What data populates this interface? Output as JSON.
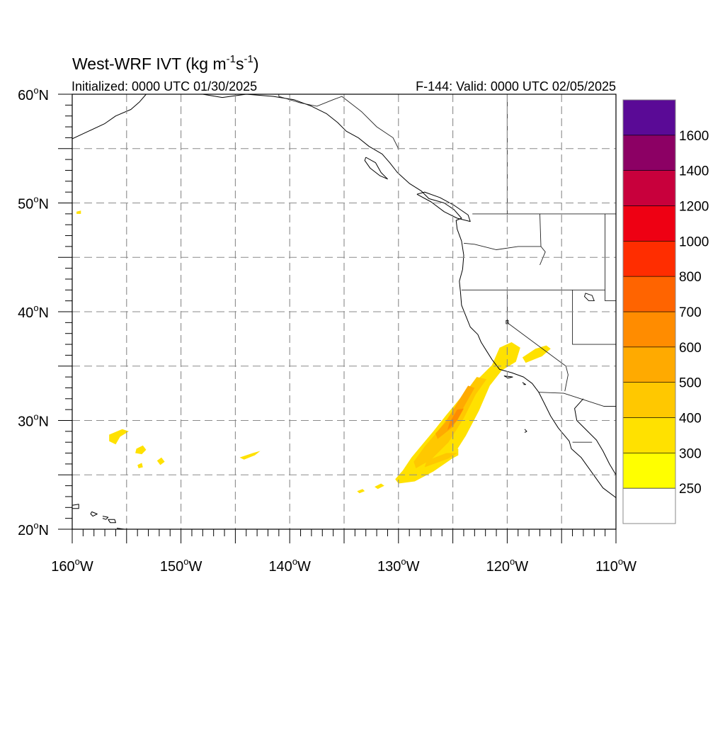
{
  "title": {
    "prefix": "West-WRF IVT (kg m",
    "sup1": "-1",
    "mid": "s",
    "sup2": "-1",
    "suffix": ")"
  },
  "initialized": "Initialized: 0000 UTC 01/30/2025",
  "valid": "F-144: Valid: 0000 UTC 02/05/2025",
  "map": {
    "lon_range": [
      -160,
      -110
    ],
    "lat_range": [
      20,
      60
    ],
    "lon_ticks": [
      {
        "value": -160,
        "num": "160",
        "hem": "W"
      },
      {
        "value": -150,
        "num": "150",
        "hem": "W"
      },
      {
        "value": -140,
        "num": "140",
        "hem": "W"
      },
      {
        "value": -130,
        "num": "130",
        "hem": "W"
      },
      {
        "value": -120,
        "num": "120",
        "hem": "W"
      },
      {
        "value": -110,
        "num": "110",
        "hem": "W"
      }
    ],
    "lat_ticks": [
      {
        "value": 20,
        "num": "20",
        "hem": "N"
      },
      {
        "value": 30,
        "num": "30",
        "hem": "N"
      },
      {
        "value": 40,
        "num": "40",
        "hem": "N"
      },
      {
        "value": 50,
        "num": "50",
        "hem": "N"
      },
      {
        "value": 60,
        "num": "60",
        "hem": "N"
      }
    ],
    "gridlines": {
      "lon": [
        -155,
        -150,
        -145,
        -140,
        -135,
        -130,
        -125,
        -120,
        -115
      ],
      "lat": [
        25,
        30,
        35,
        40,
        45,
        50,
        55
      ]
    },
    "grid_style": "dashed",
    "degree_symbol": "o"
  },
  "colorbar": {
    "levels": [
      250,
      300,
      400,
      500,
      600,
      700,
      800,
      1000,
      1200,
      1400,
      1600
    ],
    "colors": [
      "#ffffff",
      "#ffff00",
      "#ffe100",
      "#ffc800",
      "#ffaa00",
      "#ff8c00",
      "#ff6400",
      "#ff2d00",
      "#ee0013",
      "#c8003c",
      "#8c0064",
      "#5a0a96"
    ],
    "labels": [
      "250",
      "300",
      "400",
      "500",
      "600",
      "700",
      "800",
      "1000",
      "1200",
      "1400",
      "1600"
    ]
  },
  "ivt_regions": [
    {
      "level": 300,
      "pts": [
        [
          -130,
          24.2
        ],
        [
          -128.5,
          24.4
        ],
        [
          -126.8,
          25.3
        ],
        [
          -125.2,
          26.4
        ],
        [
          -123.8,
          28.6
        ],
        [
          -122.6,
          30.9
        ],
        [
          -121.6,
          33.2
        ],
        [
          -120.5,
          34.6
        ],
        [
          -119.2,
          35.4
        ],
        [
          -118.8,
          36.7
        ],
        [
          -119.6,
          37.2
        ],
        [
          -120.7,
          36.7
        ],
        [
          -121.4,
          35.1
        ],
        [
          -122.7,
          33.8
        ],
        [
          -124.2,
          32.2
        ],
        [
          -125.6,
          30.5
        ],
        [
          -126.8,
          29.0
        ],
        [
          -127.8,
          27.8
        ],
        [
          -128.8,
          26.6
        ],
        [
          -129.6,
          25.4
        ],
        [
          -130.3,
          24.6
        ]
      ]
    },
    {
      "level": 300,
      "pts": [
        [
          -128.2,
          25.1
        ],
        [
          -125.6,
          26.2
        ],
        [
          -124.5,
          26.8
        ],
        [
          -124.5,
          27.4
        ],
        [
          -126.2,
          27.0
        ],
        [
          -127.8,
          26.1
        ]
      ]
    },
    {
      "level": 300,
      "pts": [
        [
          -118.3,
          35.3
        ],
        [
          -116.8,
          35.9
        ],
        [
          -116.0,
          36.6
        ],
        [
          -116.4,
          36.9
        ],
        [
          -117.4,
          36.6
        ],
        [
          -118.6,
          35.8
        ]
      ]
    },
    {
      "level": 400,
      "pts": [
        [
          -128.4,
          25.6
        ],
        [
          -127.0,
          26.4
        ],
        [
          -125.4,
          28.0
        ],
        [
          -124.0,
          30.2
        ],
        [
          -122.9,
          32.4
        ],
        [
          -121.9,
          33.8
        ],
        [
          -122.8,
          34.0
        ],
        [
          -123.9,
          32.5
        ],
        [
          -125.2,
          30.6
        ],
        [
          -126.4,
          29.0
        ],
        [
          -127.6,
          27.6
        ],
        [
          -128.6,
          26.2
        ]
      ]
    },
    {
      "level": 400,
      "pts": [
        [
          -127.6,
          25.7
        ],
        [
          -125.4,
          26.5
        ],
        [
          -124.6,
          27.0
        ],
        [
          -125.6,
          27.0
        ],
        [
          -127.4,
          26.3
        ]
      ]
    },
    {
      "level": 500,
      "pts": [
        [
          -126.4,
          28.3
        ],
        [
          -125.0,
          29.4
        ],
        [
          -123.9,
          31.4
        ],
        [
          -123.0,
          33.0
        ],
        [
          -123.6,
          33.2
        ],
        [
          -124.6,
          31.6
        ],
        [
          -125.7,
          29.8
        ],
        [
          -126.6,
          28.8
        ]
      ]
    },
    {
      "level": 600,
      "pts": [
        [
          -125.5,
          29.1
        ],
        [
          -124.6,
          30.0
        ],
        [
          -124.0,
          31.1
        ],
        [
          -124.6,
          31.0
        ],
        [
          -125.3,
          29.8
        ]
      ]
    },
    {
      "level": 300,
      "pts": [
        [
          -156.6,
          28.7
        ],
        [
          -155.4,
          29.2
        ],
        [
          -154.8,
          29.0
        ],
        [
          -155.6,
          28.5
        ],
        [
          -156.0,
          27.8
        ],
        [
          -156.6,
          28.1
        ]
      ]
    },
    {
      "level": 300,
      "pts": [
        [
          -154.1,
          27.4
        ],
        [
          -153.5,
          27.7
        ],
        [
          -153.2,
          27.3
        ],
        [
          -153.6,
          26.9
        ],
        [
          -154.2,
          27.0
        ]
      ]
    },
    {
      "level": 300,
      "pts": [
        [
          -152.2,
          26.3
        ],
        [
          -151.8,
          26.6
        ],
        [
          -151.5,
          26.2
        ],
        [
          -151.9,
          25.9
        ]
      ]
    },
    {
      "level": 300,
      "pts": [
        [
          -154.0,
          25.9
        ],
        [
          -153.6,
          26.1
        ],
        [
          -153.5,
          25.7
        ],
        [
          -153.9,
          25.6
        ]
      ]
    },
    {
      "level": 300,
      "pts": [
        [
          -144.6,
          26.6
        ],
        [
          -143.4,
          27.0
        ],
        [
          -142.7,
          27.2
        ],
        [
          -143.2,
          26.8
        ],
        [
          -144.2,
          26.4
        ]
      ]
    },
    {
      "level": 300,
      "pts": [
        [
          -159.6,
          49.2
        ],
        [
          -159.2,
          49.3
        ],
        [
          -159.2,
          49.0
        ],
        [
          -159.6,
          49.0
        ]
      ]
    },
    {
      "level": 300,
      "pts": [
        [
          -132.2,
          23.9
        ],
        [
          -131.6,
          24.2
        ],
        [
          -131.3,
          24.0
        ],
        [
          -131.9,
          23.7
        ]
      ]
    },
    {
      "level": 300,
      "pts": [
        [
          -133.8,
          23.5
        ],
        [
          -133.3,
          23.7
        ],
        [
          -133.1,
          23.5
        ],
        [
          -133.6,
          23.3
        ]
      ]
    }
  ],
  "coastlines": [
    [
      [
        -160,
        55.9
      ],
      [
        -158.5,
        56.6
      ],
      [
        -157.0,
        57.3
      ],
      [
        -156.0,
        58.0
      ],
      [
        -154.6,
        58.6
      ],
      [
        -153.8,
        59.3
      ],
      [
        -153.2,
        60.0
      ]
    ],
    [
      [
        -148.0,
        60.0
      ],
      [
        -146.2,
        59.7
      ],
      [
        -144.0,
        60.0
      ],
      [
        -141.5,
        59.8
      ],
      [
        -139.6,
        59.5
      ],
      [
        -138.0,
        58.9
      ],
      [
        -136.6,
        58.2
      ],
      [
        -135.6,
        57.4
      ],
      [
        -134.8,
        56.6
      ],
      [
        -133.7,
        56.0
      ],
      [
        -132.7,
        55.2
      ],
      [
        -131.5,
        54.5
      ],
      [
        -130.8,
        53.7
      ],
      [
        -130.1,
        52.8
      ],
      [
        -129.0,
        51.8
      ],
      [
        -127.9,
        51.1
      ],
      [
        -127.2,
        50.4
      ],
      [
        -125.8,
        50.0
      ],
      [
        -124.9,
        49.4
      ],
      [
        -124.2,
        48.6
      ],
      [
        -124.7,
        48.4
      ],
      [
        -124.6,
        47.6
      ],
      [
        -124.2,
        46.5
      ],
      [
        -124.0,
        45.2
      ],
      [
        -124.1,
        43.9
      ],
      [
        -124.4,
        42.8
      ],
      [
        -124.3,
        41.8
      ],
      [
        -124.2,
        40.6
      ],
      [
        -123.8,
        39.6
      ],
      [
        -123.4,
        38.6
      ],
      [
        -122.7,
        37.9
      ],
      [
        -122.4,
        37.2
      ],
      [
        -121.9,
        36.4
      ],
      [
        -121.4,
        35.6
      ],
      [
        -120.7,
        34.7
      ],
      [
        -119.6,
        34.4
      ],
      [
        -118.5,
        34.0
      ],
      [
        -117.7,
        33.4
      ],
      [
        -117.1,
        32.6
      ],
      [
        -116.6,
        31.6
      ],
      [
        -116.0,
        30.4
      ],
      [
        -115.3,
        29.3
      ],
      [
        -114.3,
        28.1
      ],
      [
        -114.1,
        27.4
      ],
      [
        -113.2,
        26.6
      ],
      [
        -112.2,
        25.2
      ],
      [
        -111.2,
        23.8
      ],
      [
        -110.0,
        22.9
      ]
    ],
    [
      [
        -113.0,
        32.0
      ],
      [
        -113.8,
        31.1
      ],
      [
        -113.6,
        30.0
      ],
      [
        -112.6,
        29.0
      ],
      [
        -111.8,
        28.2
      ],
      [
        -111.2,
        27.2
      ],
      [
        -110.6,
        26.0
      ],
      [
        -110.0,
        25.0
      ]
    ],
    [
      [
        -128.3,
        50.8
      ],
      [
        -127.0,
        50.1
      ],
      [
        -125.8,
        49.2
      ],
      [
        -124.6,
        48.6
      ],
      [
        -123.4,
        48.3
      ],
      [
        -123.6,
        48.9
      ],
      [
        -124.9,
        49.8
      ],
      [
        -126.2,
        50.5
      ],
      [
        -127.6,
        51.0
      ],
      [
        -128.3,
        50.8
      ]
    ],
    [
      [
        -133.0,
        54.2
      ],
      [
        -132.1,
        53.7
      ],
      [
        -131.6,
        52.8
      ],
      [
        -131.0,
        52.2
      ],
      [
        -131.7,
        52.5
      ],
      [
        -132.6,
        53.2
      ],
      [
        -133.1,
        53.9
      ],
      [
        -133.0,
        54.2
      ]
    ],
    [
      [
        -160,
        22.2
      ],
      [
        -159.4,
        22.3
      ],
      [
        -159.4,
        21.9
      ],
      [
        -160,
        21.9
      ]
    ],
    [
      [
        -158.2,
        21.6
      ],
      [
        -157.7,
        21.4
      ],
      [
        -158.1,
        21.2
      ],
      [
        -158.3,
        21.4
      ],
      [
        -158.2,
        21.6
      ]
    ],
    [
      [
        -157.2,
        21.2
      ],
      [
        -156.7,
        21.1
      ],
      [
        -156.9,
        20.9
      ],
      [
        -157.2,
        21.0
      ]
    ],
    [
      [
        -156.7,
        20.9
      ],
      [
        -156.1,
        20.9
      ],
      [
        -156.0,
        20.6
      ],
      [
        -156.5,
        20.6
      ],
      [
        -156.7,
        20.9
      ]
    ],
    [
      [
        -155.9,
        20.1
      ],
      [
        -155.2,
        20.0
      ],
      [
        -155.0,
        20.0
      ]
    ],
    [
      [
        -120.3,
        34.1
      ],
      [
        -119.5,
        34.0
      ],
      [
        -119.9,
        33.9
      ],
      [
        -120.3,
        34.1
      ]
    ],
    [
      [
        -118.6,
        33.5
      ],
      [
        -118.3,
        33.3
      ],
      [
        -118.5,
        33.3
      ]
    ],
    [
      [
        -118.4,
        29.2
      ],
      [
        -118.2,
        29.0
      ],
      [
        -118.4,
        28.9
      ]
    ]
  ],
  "borders": [
    [
      [
        -141.0,
        60.0
      ],
      [
        -141.0,
        59.8
      ],
      [
        -139.0,
        59.2
      ],
      [
        -137.5,
        58.9
      ],
      [
        -136.0,
        59.5
      ],
      [
        -135.2,
        59.8
      ],
      [
        -133.4,
        58.4
      ],
      [
        -132.0,
        57.0
      ],
      [
        -130.5,
        56.0
      ],
      [
        -130.0,
        55.0
      ]
    ],
    [
      [
        -123.2,
        49.0
      ],
      [
        -110.0,
        49.0
      ]
    ],
    [
      [
        -120.0,
        60.0
      ],
      [
        -120.0,
        49.0
      ]
    ],
    [
      [
        -124.0,
        46.3
      ],
      [
        -123.0,
        46.2
      ],
      [
        -121.0,
        45.7
      ],
      [
        -119.0,
        46.0
      ],
      [
        -116.9,
        46.0
      ],
      [
        -117.0,
        49.0
      ]
    ],
    [
      [
        -124.2,
        42.0
      ],
      [
        -111.0,
        42.0
      ]
    ],
    [
      [
        -120.0,
        42.0
      ],
      [
        -120.0,
        39.0
      ],
      [
        -114.6,
        35.0
      ],
      [
        -114.4,
        34.2
      ],
      [
        -114.7,
        32.7
      ]
    ],
    [
      [
        -117.1,
        32.6
      ],
      [
        -114.8,
        32.5
      ],
      [
        -111.1,
        31.3
      ],
      [
        -110.0,
        31.3
      ]
    ],
    [
      [
        -117.0,
        44.3
      ],
      [
        -116.5,
        45.5
      ],
      [
        -116.9,
        46.0
      ]
    ],
    [
      [
        -114.0,
        42.0
      ],
      [
        -114.0,
        37.0
      ],
      [
        -110.0,
        37.0
      ]
    ],
    [
      [
        -111.0,
        45.0
      ],
      [
        -111.0,
        41.0
      ],
      [
        -110.0,
        41.0
      ]
    ],
    [
      [
        -111.0,
        49.0
      ],
      [
        -111.0,
        45.0
      ]
    ],
    [
      [
        -114.0,
        28.0
      ],
      [
        -112.2,
        28.0
      ]
    ]
  ],
  "lakes": [
    [
      [
        -112.8,
        41.7
      ],
      [
        -112.2,
        41.5
      ],
      [
        -112.0,
        41.0
      ],
      [
        -112.5,
        41.0
      ],
      [
        -112.9,
        41.4
      ],
      [
        -112.8,
        41.7
      ]
    ],
    [
      [
        -120.1,
        39.2
      ],
      [
        -119.9,
        39.2
      ],
      [
        -119.9,
        38.9
      ],
      [
        -120.1,
        38.9
      ]
    ]
  ]
}
